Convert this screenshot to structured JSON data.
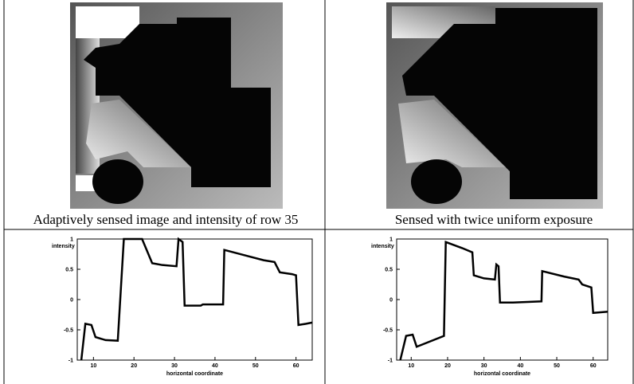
{
  "chart_data": [
    {
      "type": "line",
      "title": "Adaptively sensed image and intensity of row 35",
      "ylabel": "intensity",
      "xlabel": "horizontal coordinate",
      "x": [
        7,
        8,
        9.5,
        10.5,
        13,
        16,
        17.5,
        22,
        24.5,
        27,
        30.5,
        31,
        32,
        32.5,
        36.5,
        37,
        42,
        42.3,
        48,
        52,
        54.7,
        56,
        59,
        60,
        60.6,
        62.5,
        64
      ],
      "values": [
        -1,
        -0.4,
        -0.42,
        -0.62,
        -0.67,
        -0.68,
        1,
        1,
        0.6,
        0.57,
        0.55,
        1,
        0.95,
        -0.1,
        -0.1,
        -0.08,
        -0.08,
        0.82,
        0.72,
        0.65,
        0.62,
        0.45,
        0.42,
        0.4,
        -0.42,
        -0.4,
        -0.38
      ],
      "color": "#000000",
      "xlim": [
        6,
        64
      ],
      "ylim": [
        -1,
        1
      ],
      "xticks": [
        10,
        20,
        30,
        40,
        50,
        60
      ],
      "yticks": [
        -1,
        -0.5,
        0,
        0.5,
        1
      ]
    },
    {
      "type": "line",
      "title": "Sensed with twice uniform exposure",
      "ylabel": "intensity",
      "xlabel": "horizontal coordinate",
      "x": [
        7,
        8.6,
        10.4,
        11.5,
        19,
        19.5,
        24,
        26.8,
        27.2,
        30,
        33,
        33.4,
        34,
        34.4,
        38,
        45.8,
        46,
        52,
        56,
        57,
        59.5,
        60,
        64
      ],
      "values": [
        -1,
        -0.6,
        -0.58,
        -0.78,
        -0.6,
        0.95,
        0.85,
        0.78,
        0.4,
        0.35,
        0.33,
        0.58,
        0.55,
        -0.05,
        -0.05,
        -0.03,
        0.47,
        0.38,
        0.33,
        0.25,
        0.2,
        -0.22,
        -0.2
      ],
      "color": "#000000",
      "xlim": [
        6,
        64
      ],
      "ylim": [
        -1,
        1
      ],
      "xticks": [
        10,
        20,
        30,
        40,
        50,
        60
      ],
      "yticks": [
        -1,
        -0.5,
        0,
        0.5,
        1
      ]
    }
  ]
}
